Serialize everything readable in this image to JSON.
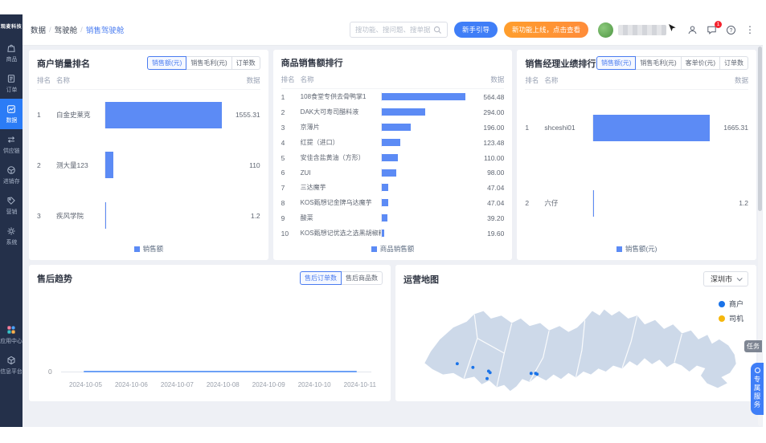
{
  "brand": {
    "logo": "观麦科技"
  },
  "sidebar": {
    "items": [
      {
        "name": "goods",
        "label": "商品"
      },
      {
        "name": "orders",
        "label": "订单"
      },
      {
        "name": "data",
        "label": "数据",
        "active": true
      },
      {
        "name": "supply-chain",
        "label": "供应链"
      },
      {
        "name": "inventory",
        "label": "进销存"
      },
      {
        "name": "marketing",
        "label": "营销"
      },
      {
        "name": "system",
        "label": "系统"
      }
    ],
    "bottom_items": [
      {
        "name": "app-center",
        "label": "应用中心"
      },
      {
        "name": "info-platform",
        "label": "信息平台"
      }
    ]
  },
  "header": {
    "breadcrumb": [
      {
        "label": "数据"
      },
      {
        "label": "驾驶舱"
      },
      {
        "label": "销售驾驶舱",
        "active": true
      }
    ],
    "search_placeholder": "搜功能、搜问题、搜单据",
    "guide_button": "新手引导",
    "promo_button": "新功能上线，点击查看",
    "message_badge": "1",
    "help_glyph": "?",
    "more_glyph": "⋮"
  },
  "panels": {
    "merchant": {
      "title": "商户销量排名",
      "tabs": [
        {
          "label": "销售额(元)",
          "active": true
        },
        {
          "label": "销售毛利(元)"
        },
        {
          "label": "订单数"
        }
      ],
      "columns": {
        "rank": "排名",
        "name": "名称",
        "value": "数据"
      },
      "legend": "销售额",
      "rows": [
        {
          "rank": "1",
          "name": "白金史莱克",
          "value": "1555.31",
          "num": 1555.31
        },
        {
          "rank": "2",
          "name": "测大量123",
          "value": "110",
          "num": 110
        },
        {
          "rank": "3",
          "name": "疾风学院",
          "value": "1.2",
          "num": 1.2
        }
      ]
    },
    "product": {
      "title": "商品销售额排行",
      "columns": {
        "rank": "排名",
        "name": "名称",
        "value": "数据"
      },
      "legend": "商品销售额",
      "rows": [
        {
          "rank": "1",
          "name": "108食堂专供去骨鸭掌1",
          "value": "564.48",
          "num": 564.48
        },
        {
          "rank": "2",
          "name": "DAK大可寿司醋料液",
          "value": "294.00",
          "num": 294
        },
        {
          "rank": "3",
          "name": "京薄片",
          "value": "196.00",
          "num": 196
        },
        {
          "rank": "4",
          "name": "红提（进口）",
          "value": "123.48",
          "num": 123.48
        },
        {
          "rank": "5",
          "name": "安佳含盐黄油（方形）",
          "value": "110.00",
          "num": 110
        },
        {
          "rank": "6",
          "name": "ZUI",
          "value": "98.00",
          "num": 98
        },
        {
          "rank": "7",
          "name": "三达魔芋",
          "value": "47.04",
          "num": 47.04
        },
        {
          "rank": "8",
          "name": "KOS甄想记金牌乌达魔芋",
          "value": "47.04",
          "num": 47.04
        },
        {
          "rank": "9",
          "name": "酸菜",
          "value": "39.20",
          "num": 39.2
        },
        {
          "rank": "10",
          "name": "KOS甄想记优选之选黑胡椒粉",
          "value": "19.60",
          "num": 19.6
        }
      ]
    },
    "manager": {
      "title": "销售经理业绩排行",
      "tabs": [
        {
          "label": "销售额(元)",
          "active": true
        },
        {
          "label": "销售毛利(元)"
        },
        {
          "label": "客单价(元)"
        },
        {
          "label": "订单数"
        }
      ],
      "columns": {
        "rank": "排名",
        "name": "名称",
        "value": "数据"
      },
      "legend": "销售额(元)",
      "rows": [
        {
          "rank": "1",
          "name": "shceshi01",
          "value": "1665.31",
          "num": 1665.31
        },
        {
          "rank": "2",
          "name": "六仔",
          "value": "1.2",
          "num": 1.2
        }
      ]
    },
    "aftersales": {
      "title": "售后趋势",
      "tabs": [
        {
          "label": "售后订单数",
          "active": true
        },
        {
          "label": "售后商品数"
        }
      ],
      "y_zero": "0",
      "dates": [
        "2024-10-05",
        "2024-10-06",
        "2024-10-07",
        "2024-10-08",
        "2024-10-09",
        "2024-10-10",
        "2024-10-11"
      ],
      "series": [
        {
          "name": "售后订单数",
          "values": [
            0,
            0,
            0,
            0,
            0,
            0,
            0
          ]
        }
      ]
    },
    "map": {
      "title": "运营地图",
      "city": "深圳市",
      "legend": [
        {
          "label": "商户",
          "color": "#1a73e8"
        },
        {
          "label": "司机",
          "color": "#f5b70d"
        }
      ],
      "dots": [
        [
          61,
          96
        ],
        [
          82,
          101
        ],
        [
          103,
          106
        ],
        [
          105,
          108
        ],
        [
          101,
          116
        ],
        [
          160,
          109
        ],
        [
          166,
          109
        ],
        [
          168,
          110
        ]
      ]
    }
  },
  "floating": {
    "task": "任务",
    "service": "专属服务"
  },
  "colors": {
    "accent": "#2b7cf6",
    "bar": "#5c8bf5",
    "promo": "#ff9e2c",
    "sidebar_bg": "#24304a",
    "content_bg": "#eef0f5"
  }
}
